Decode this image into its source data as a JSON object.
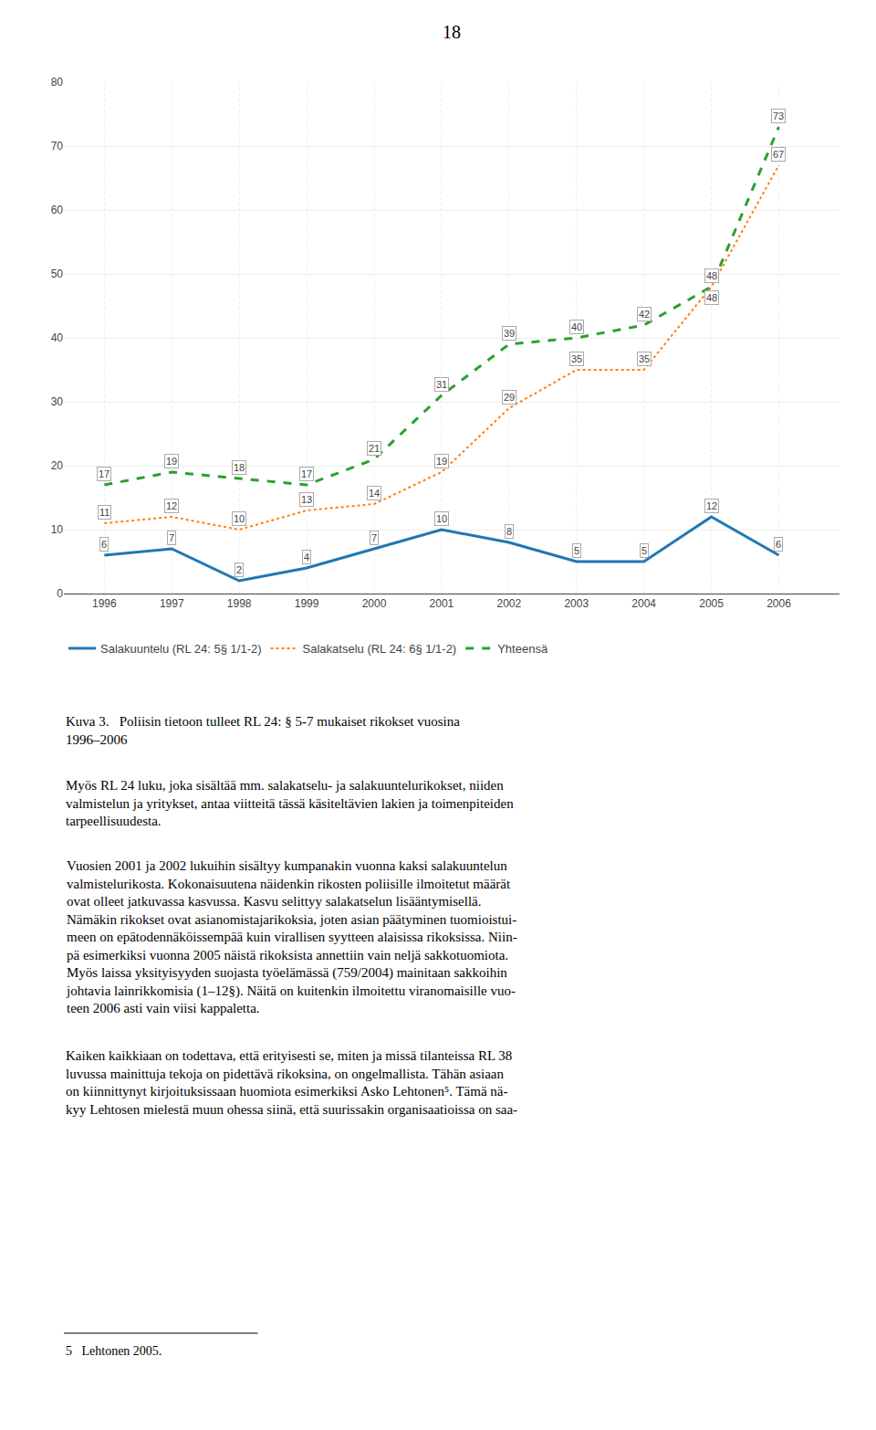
{
  "chart_data": {
    "type": "line",
    "title": "Kuva 3.   Poliisin tietoon tulleet RL 24: § 5-7 mukaiset rikokset vuosina\n1996–2006",
    "x": [
      1996,
      1997,
      1998,
      1999,
      2000,
      2001,
      2002,
      2003,
      2004,
      2005,
      2006
    ],
    "series": [
      {
        "name": "Salakuuntelu (RL 24: 5§ 1/1-2)",
        "line_style": "solid",
        "values": [
          6,
          7,
          2,
          4,
          7,
          10,
          8,
          5,
          5,
          12,
          6
        ]
      },
      {
        "name": "Salakatselu (RL 24: 6§ 1/1-2)",
        "line_style": "dotted",
        "values": [
          11,
          12,
          10,
          13,
          14,
          19,
          29,
          35,
          35,
          48,
          67
        ]
      },
      {
        "name": "Yhteensä",
        "line_style": "dashed",
        "values": [
          17,
          19,
          18,
          17,
          21,
          31,
          39,
          40,
          42,
          48,
          73
        ]
      }
    ],
    "xlim": [
      1995.4,
      2006.9
    ],
    "xticks": [
      1996,
      1997,
      1998,
      1999,
      2000,
      2001,
      2002,
      2003,
      2004,
      2005,
      2006
    ],
    "ylim": [
      0,
      80
    ],
    "yticks": [
      0,
      10,
      20,
      30,
      40,
      50,
      60,
      70,
      80
    ],
    "grid": true,
    "data_labels": true,
    "legend": "bottom",
    "annotations": [
      "18",
      "Myös RL 24 luku, joka sisältää mm. salakatselu- ja salakuuntelurikokset, niiden\nvalmistelun ja yritykset, antaa viitteitä tässä käsiteltävien lakien ja toimenpiteiden\ntarpeellisuudesta.",
      "Vuosien 2001 ja 2002 lukuihin sisältyy kumpanakin vuonna kaksi salakuuntelun\nvalmistelurikosta. Kokonaisuutena näidenkin rikosten poliisille ilmoitetut määrät\novat olleet jatkuvassa kasvussa. Kasvu selittyy salakatselun lisääntymisellä.\nNämäkin rikokset ovat asianomistajarikoksia, joten asian päätyminen tuomioistui-\nmeen on epätodennäköissempää kuin virallisen syytteen alaisissa rikoksissa. Niin-\npä esimerkiksi vuonna 2005 näistä rikoksista annettiin vain neljä sakkotuomiota.\nMyös laissa yksityisyyden suojasta työelämässä (759/2004) mainitaan sakkoihin\njohtavia lainrikkomisia (1–12§). Näitä on kuitenkin ilmoitettu viranomaisille vuo-\nteen 2006 asti vain viisi kappaletta.",
      "Kaiken kaikkiaan on todettava, että erityisesti se, miten ja missä tilanteissa RL 38\nluvussa mainittuja tekoja on pidettävä rikoksina, on ongelmallista. Tähän asiaan\non kiinnittynyt kirjoituksissaan huomiota esimerkiksi Asko Lehtonen⁵. Tämä nä-\nkyy Lehtosen mielestä muun ohessa siinä, että suurissakin organisaatioissa on saa-",
      "5   Lehtonen 2005."
    ]
  }
}
